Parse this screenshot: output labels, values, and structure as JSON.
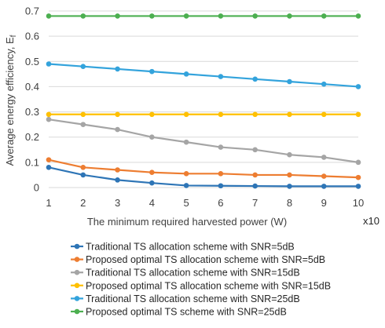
{
  "chart_data": {
    "type": "line",
    "xlabel": "The minimum required harvested power (W)",
    "ylabel": "Average energy efficiency, E",
    "ylabel_sub": "f",
    "x_multiplier": "x10",
    "x": [
      1,
      2,
      3,
      4,
      5,
      6,
      7,
      8,
      9,
      10
    ],
    "xlim": [
      1,
      10
    ],
    "ylim": [
      0,
      0.7
    ],
    "yticks": [
      "0",
      "0.1",
      "0.2",
      "0.3",
      "0.4",
      "0.5",
      "0.6",
      "0.7"
    ],
    "xticks": [
      "1",
      "2",
      "3",
      "4",
      "5",
      "6",
      "7",
      "8",
      "9",
      "10"
    ],
    "grid": "horizontal",
    "legend_position": "bottom",
    "series": [
      {
        "name": "Traditional TS allocation scheme with SNR=5dB",
        "color": "#2E75B6",
        "values": [
          0.08,
          0.05,
          0.03,
          0.018,
          0.008,
          0.007,
          0.006,
          0.005,
          0.005,
          0.005
        ]
      },
      {
        "name": "Proposed optimal TS allocation scheme with SNR=5dB",
        "color": "#ED7D31",
        "values": [
          0.11,
          0.08,
          0.07,
          0.06,
          0.055,
          0.055,
          0.05,
          0.05,
          0.045,
          0.04
        ]
      },
      {
        "name": "Traditional TS allocation scheme with SNR=15dB",
        "color": "#A5A5A5",
        "values": [
          0.27,
          0.25,
          0.23,
          0.2,
          0.18,
          0.16,
          0.15,
          0.13,
          0.12,
          0.1
        ]
      },
      {
        "name": "Proposed optimal TS allocation scheme with SNR=15dB",
        "color": "#FFC000",
        "values": [
          0.29,
          0.29,
          0.29,
          0.29,
          0.29,
          0.29,
          0.29,
          0.29,
          0.29,
          0.29
        ]
      },
      {
        "name": "Traditional TS allocation scheme with SNR=25dB",
        "color": "#33A3DC",
        "values": [
          0.49,
          0.48,
          0.47,
          0.46,
          0.45,
          0.44,
          0.43,
          0.42,
          0.41,
          0.4
        ]
      },
      {
        "name": "Proposed optimal TS scheme with SNR=25dB",
        "color": "#4CAF50",
        "values": [
          0.68,
          0.68,
          0.68,
          0.68,
          0.68,
          0.68,
          0.68,
          0.68,
          0.68,
          0.68
        ]
      }
    ]
  }
}
